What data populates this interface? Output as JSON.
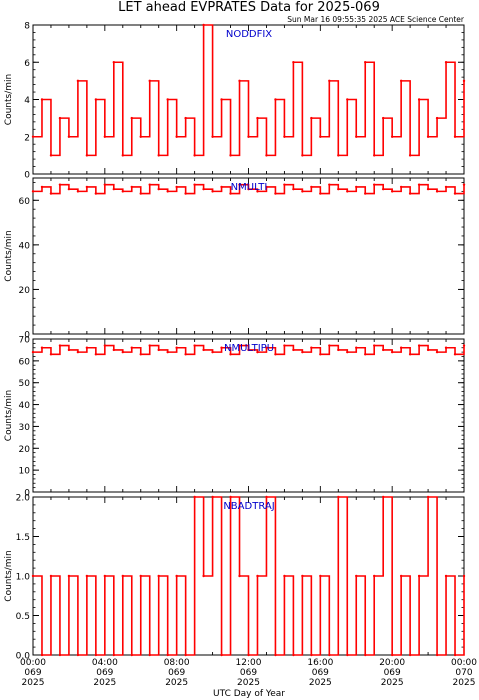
{
  "title": "LET ahead EVPRATES Data for 2025-069",
  "timestamp": "Sun Mar 16 09:55:35 2025 ACE Science Center",
  "xlabel": "UTC Day of Year",
  "colors": {
    "data": "#ff0000",
    "label": "#0000cc",
    "axes": "#000000"
  },
  "x_ticks": [
    {
      "hour": 0,
      "time": "00:00",
      "doy": "069",
      "year": "2025"
    },
    {
      "hour": 4,
      "time": "04:00",
      "doy": "069",
      "year": "2025"
    },
    {
      "hour": 8,
      "time": "08:00",
      "doy": "069",
      "year": "2025"
    },
    {
      "hour": 12,
      "time": "12:00",
      "doy": "069",
      "year": "2025"
    },
    {
      "hour": 16,
      "time": "16:00",
      "doy": "069",
      "year": "2025"
    },
    {
      "hour": 20,
      "time": "20:00",
      "doy": "069",
      "year": "2025"
    },
    {
      "hour": 24,
      "time": "00:00",
      "doy": "070",
      "year": "2025"
    }
  ],
  "chart_data": [
    {
      "type": "line",
      "series_label": "NODDFIX",
      "ylabel": "Counts/min",
      "xlim": [
        0,
        24
      ],
      "ylim": [
        0,
        8
      ],
      "yticks": [
        0,
        2,
        4,
        6,
        8
      ],
      "yticklabels": [
        "0",
        "2",
        "4",
        "6",
        "8"
      ],
      "x": [
        0,
        0.5,
        1,
        1.5,
        2,
        2.5,
        3,
        3.5,
        4,
        4.5,
        5,
        5.5,
        6,
        6.5,
        7,
        7.5,
        8,
        8.5,
        9,
        9.5,
        10,
        10.5,
        11,
        11.5,
        12,
        12.5,
        13,
        13.5,
        14,
        14.5,
        15,
        15.5,
        16,
        16.5,
        17,
        17.5,
        18,
        18.5,
        19,
        19.5,
        20,
        20.5,
        21,
        21.5,
        22,
        22.5,
        23,
        23.5,
        24
      ],
      "values": [
        2,
        4,
        1,
        3,
        2,
        5,
        1,
        4,
        2,
        6,
        1,
        3,
        2,
        5,
        1,
        4,
        2,
        3,
        1,
        8,
        2,
        4,
        1,
        5,
        2,
        3,
        1,
        4,
        2,
        6,
        1,
        3,
        2,
        5,
        1,
        4,
        2,
        6,
        1,
        3,
        2,
        5,
        1,
        4,
        2,
        3,
        6,
        2,
        5
      ]
    },
    {
      "type": "line",
      "series_label": "NMULTI",
      "ylabel": "Counts/min",
      "xlim": [
        0,
        24
      ],
      "ylim": [
        0,
        70
      ],
      "yticks": [
        0,
        20,
        40,
        60
      ],
      "yticklabels": [
        "0",
        "20",
        "40",
        "60"
      ],
      "x": [
        0,
        0.5,
        1,
        1.5,
        2,
        2.5,
        3,
        3.5,
        4,
        4.5,
        5,
        5.5,
        6,
        6.5,
        7,
        7.5,
        8,
        8.5,
        9,
        9.5,
        10,
        10.5,
        11,
        11.5,
        12,
        12.5,
        13,
        13.5,
        14,
        14.5,
        15,
        15.5,
        16,
        16.5,
        17,
        17.5,
        18,
        18.5,
        19,
        19.5,
        20,
        20.5,
        21,
        21.5,
        22,
        22.5,
        23,
        23.5,
        24
      ],
      "values": [
        64,
        66,
        63,
        67,
        65,
        64,
        66,
        63,
        67,
        65,
        64,
        66,
        63,
        67,
        65,
        64,
        66,
        63,
        67,
        65,
        64,
        66,
        63,
        67,
        65,
        64,
        66,
        63,
        67,
        65,
        64,
        66,
        63,
        67,
        65,
        64,
        66,
        63,
        67,
        65,
        64,
        66,
        63,
        67,
        65,
        64,
        66,
        63,
        67
      ]
    },
    {
      "type": "line",
      "series_label": "NMULTIPU",
      "ylabel": "Counts/min",
      "xlim": [
        0,
        24
      ],
      "ylim": [
        0,
        70
      ],
      "yticks": [
        0,
        10,
        20,
        30,
        40,
        50,
        60,
        70
      ],
      "yticklabels": [
        "0",
        "10",
        "20",
        "30",
        "40",
        "50",
        "60",
        "70"
      ],
      "x": [
        0,
        0.5,
        1,
        1.5,
        2,
        2.5,
        3,
        3.5,
        4,
        4.5,
        5,
        5.5,
        6,
        6.5,
        7,
        7.5,
        8,
        8.5,
        9,
        9.5,
        10,
        10.5,
        11,
        11.5,
        12,
        12.5,
        13,
        13.5,
        14,
        14.5,
        15,
        15.5,
        16,
        16.5,
        17,
        17.5,
        18,
        18.5,
        19,
        19.5,
        20,
        20.5,
        21,
        21.5,
        22,
        22.5,
        23,
        23.5,
        24
      ],
      "values": [
        64,
        66,
        63,
        67,
        65,
        64,
        66,
        63,
        67,
        65,
        64,
        66,
        63,
        67,
        65,
        64,
        66,
        63,
        67,
        65,
        64,
        66,
        63,
        67,
        65,
        64,
        66,
        63,
        67,
        65,
        64,
        66,
        63,
        67,
        65,
        64,
        66,
        63,
        67,
        65,
        64,
        66,
        63,
        67,
        65,
        64,
        66,
        63,
        67
      ]
    },
    {
      "type": "line",
      "series_label": "NBADTRAJ",
      "ylabel": "Counts/min",
      "xlim": [
        0,
        24
      ],
      "ylim": [
        0,
        2
      ],
      "yticks": [
        0,
        0.5,
        1,
        1.5,
        2
      ],
      "yticklabels": [
        "0.0",
        "0.5",
        "1.0",
        "1.5",
        "2.0"
      ],
      "x": [
        0,
        0.5,
        1,
        1.5,
        2,
        2.5,
        3,
        3.5,
        4,
        4.5,
        5,
        5.5,
        6,
        6.5,
        7,
        7.5,
        8,
        8.5,
        9,
        9.5,
        10,
        10.5,
        11,
        11.5,
        12,
        12.5,
        13,
        13.5,
        14,
        14.5,
        15,
        15.5,
        16,
        16.5,
        17,
        17.5,
        18,
        18.5,
        19,
        19.5,
        20,
        20.5,
        21,
        21.5,
        22,
        22.5,
        23,
        23.5,
        24
      ],
      "values": [
        1,
        0,
        1,
        0,
        1,
        0,
        1,
        0,
        1,
        0,
        1,
        0,
        1,
        0,
        1,
        0,
        1,
        0,
        2,
        1,
        2,
        0,
        2,
        1,
        0,
        1,
        2,
        0,
        1,
        0,
        1,
        0,
        1,
        0,
        2,
        0,
        1,
        0,
        1,
        2,
        0,
        1,
        0,
        1,
        2,
        0,
        1,
        0,
        1
      ]
    }
  ]
}
